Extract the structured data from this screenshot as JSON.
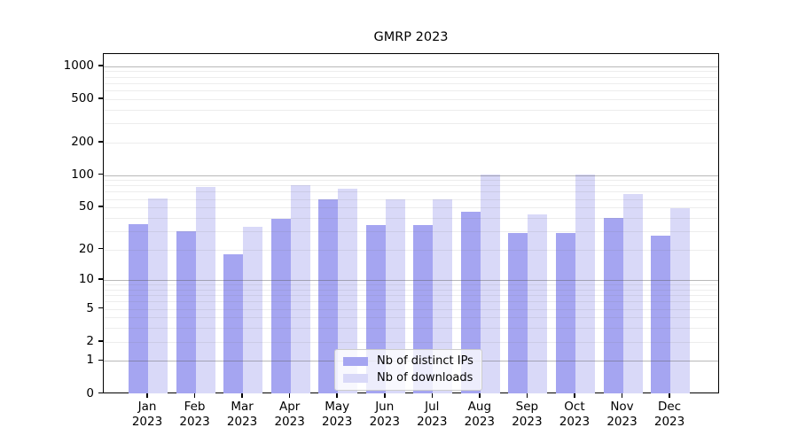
{
  "chart_data": {
    "type": "bar",
    "title": "GMRP 2023",
    "categories": [
      "Jan",
      "Feb",
      "Mar",
      "Apr",
      "May",
      "Jun",
      "Jul",
      "Aug",
      "Sep",
      "Oct",
      "Nov",
      "Dec"
    ],
    "category_year": "2023",
    "series": [
      {
        "name": "Nb of distinct IPs",
        "color": "#a5a5f1",
        "values": [
          35,
          30,
          18,
          39,
          60,
          34,
          34,
          46,
          29,
          29,
          40,
          27
        ]
      },
      {
        "name": "Nb of downloads",
        "color": "#d9d9f8",
        "values": [
          61,
          78,
          33,
          80,
          75,
          60,
          60,
          101,
          43,
          101,
          67,
          49
        ]
      }
    ],
    "y_axis": {
      "scale": "log1p",
      "ticks": [
        0,
        1,
        2,
        5,
        10,
        20,
        50,
        100,
        200,
        500,
        1000
      ],
      "max_value": 1296,
      "major_gridlines": [
        1,
        10,
        100,
        1000
      ],
      "minor_gridlines": [
        2,
        3,
        4,
        5,
        6,
        7,
        8,
        9,
        20,
        30,
        40,
        50,
        60,
        70,
        80,
        90,
        200,
        300,
        400,
        500,
        600,
        700,
        800,
        900
      ]
    },
    "legend": {
      "position": "lower-center"
    },
    "colors": {
      "bar_dark": "#a5a5f1",
      "bar_light": "#d9d9f8",
      "major_grid": "#bdbdbd",
      "minor_grid": "#ebebeb",
      "spine": "#000000"
    },
    "grid": true
  }
}
